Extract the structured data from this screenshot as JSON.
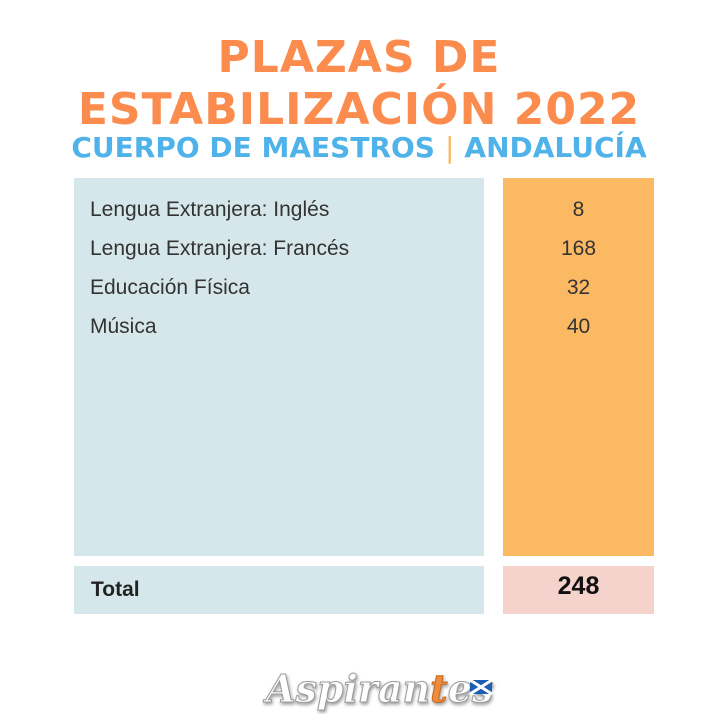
{
  "title": {
    "line1": "PLAZAS DE",
    "line2": "ESTABILIZACIÓN 2022"
  },
  "subtitle": {
    "left": "CUERPO DE MAESTROS",
    "separator": "|",
    "right": "ANDALUCÍA"
  },
  "table": {
    "rows": [
      {
        "name": "Lengua Extranjera: Inglés",
        "value": "8"
      },
      {
        "name": "Lengua Extranjera: Francés",
        "value": "168"
      },
      {
        "name": "Educación Física",
        "value": "32"
      },
      {
        "name": "Música",
        "value": "40"
      }
    ],
    "total_label": "Total",
    "total_value": "248"
  },
  "logo": {
    "text": "Aspirantes",
    "icon": "scotland-flag-icon"
  },
  "colors": {
    "title": "#fb8c4e",
    "subtitle": "#4fb3ea",
    "names_panel": "#d5e7eb",
    "values_panel": "#fcb964",
    "total_value_panel": "#f5d2cc"
  }
}
